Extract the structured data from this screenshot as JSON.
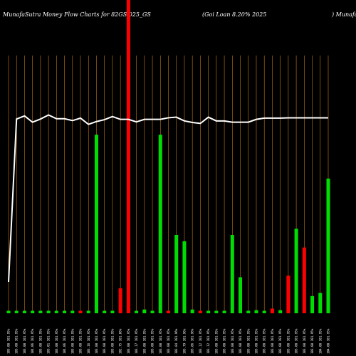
{
  "header": {
    "left_title": "MunafaSutra  Money Flow  Charts for 82GS 025_GS",
    "mid_title": "(Goi   Loan   8.20%  2025",
    "right_title": ") MunafaSutra.co"
  },
  "colors": {
    "background": "#000000",
    "grid_line": "#c87814",
    "positive": "#00dd00",
    "negative": "#ff0000",
    "price_line": "#ffffff"
  },
  "chart_data": {
    "type": "bar",
    "ylim": [
      0,
      100
    ],
    "line_ylim": [
      0,
      100
    ],
    "categories": [
      "103.08 101.95%",
      "103.08 101.95%",
      "103.08 101.95%",
      "104.06 101.95%",
      "103.08 101.95%",
      "103.01 101.95%",
      "103.08 101.95%",
      "104.06 101.95%",
      "103.08 101.95%",
      "103.08 101.95%",
      "103.16 101.95%",
      "103.08 101.95%",
      "103.08 101.95%",
      "103.08 101.95%",
      "102.75 101.86%",
      "103.08 101.95%",
      "103.17 101.95%",
      "103.08 101.95%",
      "103.08 101.95%",
      "103.08 101.95%",
      "103.08 101.95%",
      "103.84 101.96%",
      "103.79 101.96%",
      "103.86 101.96%",
      "103.12 101.95%",
      "103.12 101.95%",
      "103.08 101.95%",
      "103.08 101.95%",
      "103.08 101.95%",
      "103.08 101.95%",
      "103.08 101.95%",
      "103.08 101.95%",
      "103.08 101.95%",
      "103.08 101.95%",
      "103.08 101.95%",
      "103.08 101.95%",
      "103.08 101.95%",
      "103.08 101.95%",
      "103.08 101.95%",
      "104.08 101.95%",
      "104.08 101.95%"
    ],
    "bars": [
      {
        "value": 0.8,
        "dir": "up"
      },
      {
        "value": 0.8,
        "dir": "up"
      },
      {
        "value": 0.8,
        "dir": "up"
      },
      {
        "value": 0.8,
        "dir": "up"
      },
      {
        "value": 0.8,
        "dir": "up"
      },
      {
        "value": 0.8,
        "dir": "up"
      },
      {
        "value": 0.8,
        "dir": "up"
      },
      {
        "value": 0.8,
        "dir": "up"
      },
      {
        "value": 0.8,
        "dir": "up"
      },
      {
        "value": 0.8,
        "dir": "down"
      },
      {
        "value": 0.8,
        "dir": "up"
      },
      {
        "value": 57,
        "dir": "up"
      },
      {
        "value": 0.8,
        "dir": "up"
      },
      {
        "value": 0.8,
        "dir": "up"
      },
      {
        "value": 8,
        "dir": "down"
      },
      {
        "value": 100,
        "dir": "down"
      },
      {
        "value": 0.8,
        "dir": "up"
      },
      {
        "value": 1.2,
        "dir": "up"
      },
      {
        "value": 0.8,
        "dir": "up"
      },
      {
        "value": 57,
        "dir": "up"
      },
      {
        "value": 0.8,
        "dir": "down"
      },
      {
        "value": 25,
        "dir": "up"
      },
      {
        "value": 23,
        "dir": "up"
      },
      {
        "value": 1.2,
        "dir": "up"
      },
      {
        "value": 0.8,
        "dir": "down"
      },
      {
        "value": 0.8,
        "dir": "up"
      },
      {
        "value": 0.8,
        "dir": "up"
      },
      {
        "value": 0.8,
        "dir": "up"
      },
      {
        "value": 25,
        "dir": "up"
      },
      {
        "value": 11.5,
        "dir": "up"
      },
      {
        "value": 0.8,
        "dir": "up"
      },
      {
        "value": 1.0,
        "dir": "up"
      },
      {
        "value": 0.8,
        "dir": "up"
      },
      {
        "value": 1.5,
        "dir": "down"
      },
      {
        "value": 1.0,
        "dir": "up"
      },
      {
        "value": 12,
        "dir": "down"
      },
      {
        "value": 27,
        "dir": "up"
      },
      {
        "value": 21,
        "dir": "down"
      },
      {
        "value": 5.5,
        "dir": "up"
      },
      {
        "value": 6.5,
        "dir": "up"
      },
      {
        "value": 43,
        "dir": "up"
      }
    ],
    "price_line": [
      10,
      62,
      63,
      61,
      62,
      63.3,
      62.1,
      62.1,
      61.5,
      62.3,
      60.3,
      61.2,
      61.8,
      62.8,
      61.9,
      61.9,
      61.1,
      61.9,
      61.9,
      61.9,
      62.4,
      62.6,
      61.4,
      60.9,
      60.6,
      62.6,
      61.4,
      61.4,
      61.0,
      61.0,
      61.0,
      61.9,
      62.3,
      62.3,
      62.3,
      62.4,
      62.4,
      62.4,
      62.4,
      62.4,
      62.4
    ]
  }
}
